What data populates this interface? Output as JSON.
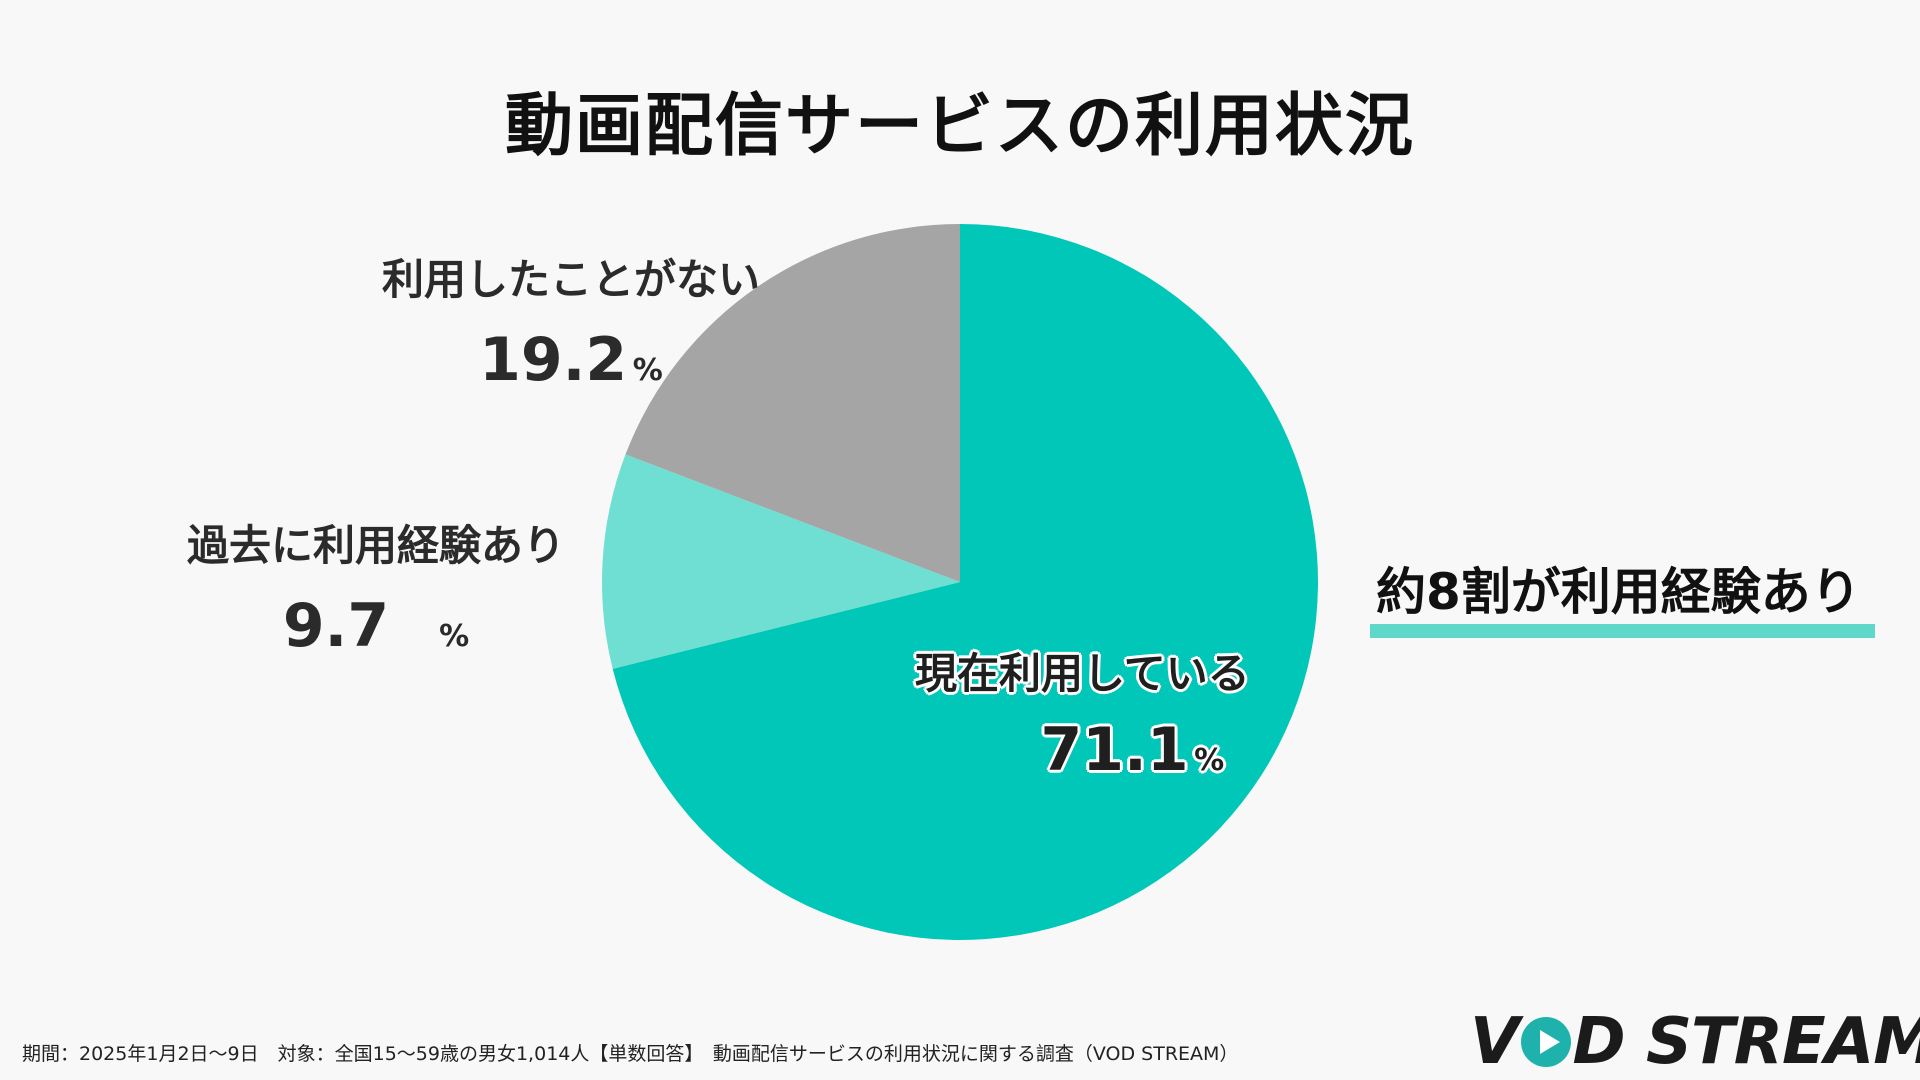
{
  "title": "動画配信サービスの利用状況",
  "callout": "約8割が利用経験あり",
  "footnote": "期間：2025年1月2日〜9日　対象：全国15〜59歳の男女1,014人【単数回答】　動画配信サービスの利用状況に関する調査（VOD STREAM）",
  "logo": {
    "part1": "V",
    "part2": "D STREAM",
    "icon": "play-icon"
  },
  "colors": {
    "current": "#00c7b8",
    "past": "#6edfd2",
    "never": "#a5a5a5",
    "accent_underline": "#5fd8c9"
  },
  "chart_data": {
    "type": "pie",
    "title": "動画配信サービスの利用状況",
    "unit": "%",
    "start": "12 o'clock, clockwise",
    "slices": [
      {
        "label": "現在利用している",
        "value": 71.1,
        "display": "71.1"
      },
      {
        "label": "過去に利用経験あり",
        "value": 9.7,
        "display": "9.7"
      },
      {
        "label": "利用したことがない",
        "value": 19.2,
        "display": "19.2"
      }
    ]
  }
}
